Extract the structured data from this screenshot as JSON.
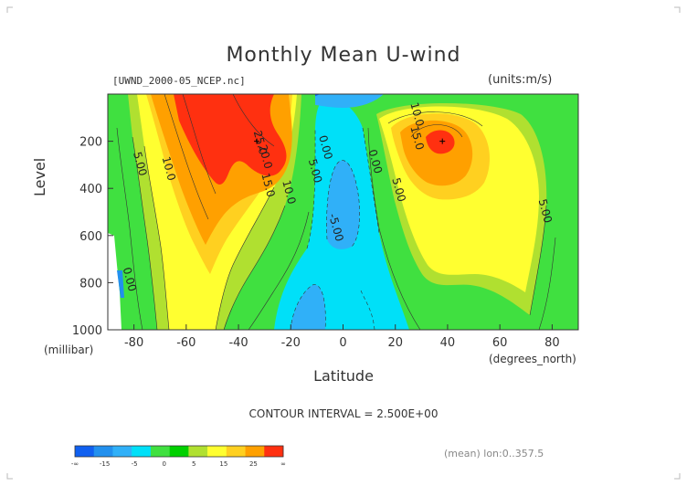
{
  "header": {
    "title": "Monthly Mean U-wind",
    "file_label": "[UWND_2000-05_NCEP.nc]",
    "units_label": "(units:m/s)"
  },
  "footer": {
    "contour_interval": "CONTOUR INTERVAL = 2.500E+00",
    "mean_label": "(mean) lon:0..357.5"
  },
  "chart_data": {
    "type": "heatmap",
    "title": "Monthly Mean U-wind",
    "xlabel": "Latitude",
    "x_unit_label": "(degrees_north)",
    "ylabel": "Level",
    "y_unit_label": "(millibar)",
    "xlim": [
      -90,
      90
    ],
    "ylim": [
      1000,
      0
    ],
    "x_ticks": [
      -80,
      -60,
      -40,
      -20,
      0,
      20,
      40,
      60,
      80
    ],
    "y_ticks": [
      200,
      400,
      600,
      800,
      1000
    ],
    "contour_interval": 2.5,
    "contour_labels": [
      {
        "text": "5.00",
        "lat": -79,
        "level": 300
      },
      {
        "text": "10.0",
        "lat": -68,
        "level": 320
      },
      {
        "text": "25.0",
        "lat": -33,
        "level": 210
      },
      {
        "text": "20.0",
        "lat": -31,
        "level": 270
      },
      {
        "text": "15.0",
        "lat": -30,
        "level": 390
      },
      {
        "text": "10.0",
        "lat": -22,
        "level": 420
      },
      {
        "text": "5.00",
        "lat": -12,
        "level": 330
      },
      {
        "text": "0.00",
        "lat": -8,
        "level": 230
      },
      {
        "text": "0.00",
        "lat": 11,
        "level": 290
      },
      {
        "text": "5.00",
        "lat": 20,
        "level": 410
      },
      {
        "text": "10.0",
        "lat": 27,
        "level": 90
      },
      {
        "text": "15.0",
        "lat": 27,
        "level": 190
      },
      {
        "text": "5.00",
        "lat": 76,
        "level": 500
      },
      {
        "text": "-5.00",
        "lat": -4,
        "level": 570
      },
      {
        "text": "0.00",
        "lat": -83,
        "level": 790
      }
    ],
    "peaks": [
      {
        "lat": -33,
        "level": 200,
        "value": 27.5
      },
      {
        "lat": 38,
        "level": 200,
        "value": 27.5
      }
    ],
    "colorbar": {
      "labels": [
        "-∞",
        "-15",
        "-5",
        "0",
        "5",
        "15",
        "25",
        "∞"
      ],
      "colors": [
        "#1060f0",
        "#2290ee",
        "#30b0f8",
        "#00e0f8",
        "#40e040",
        "#00d000",
        "#b0e030",
        "#ffff30",
        "#ffd020",
        "#ffa000",
        "#ff3010"
      ]
    }
  }
}
